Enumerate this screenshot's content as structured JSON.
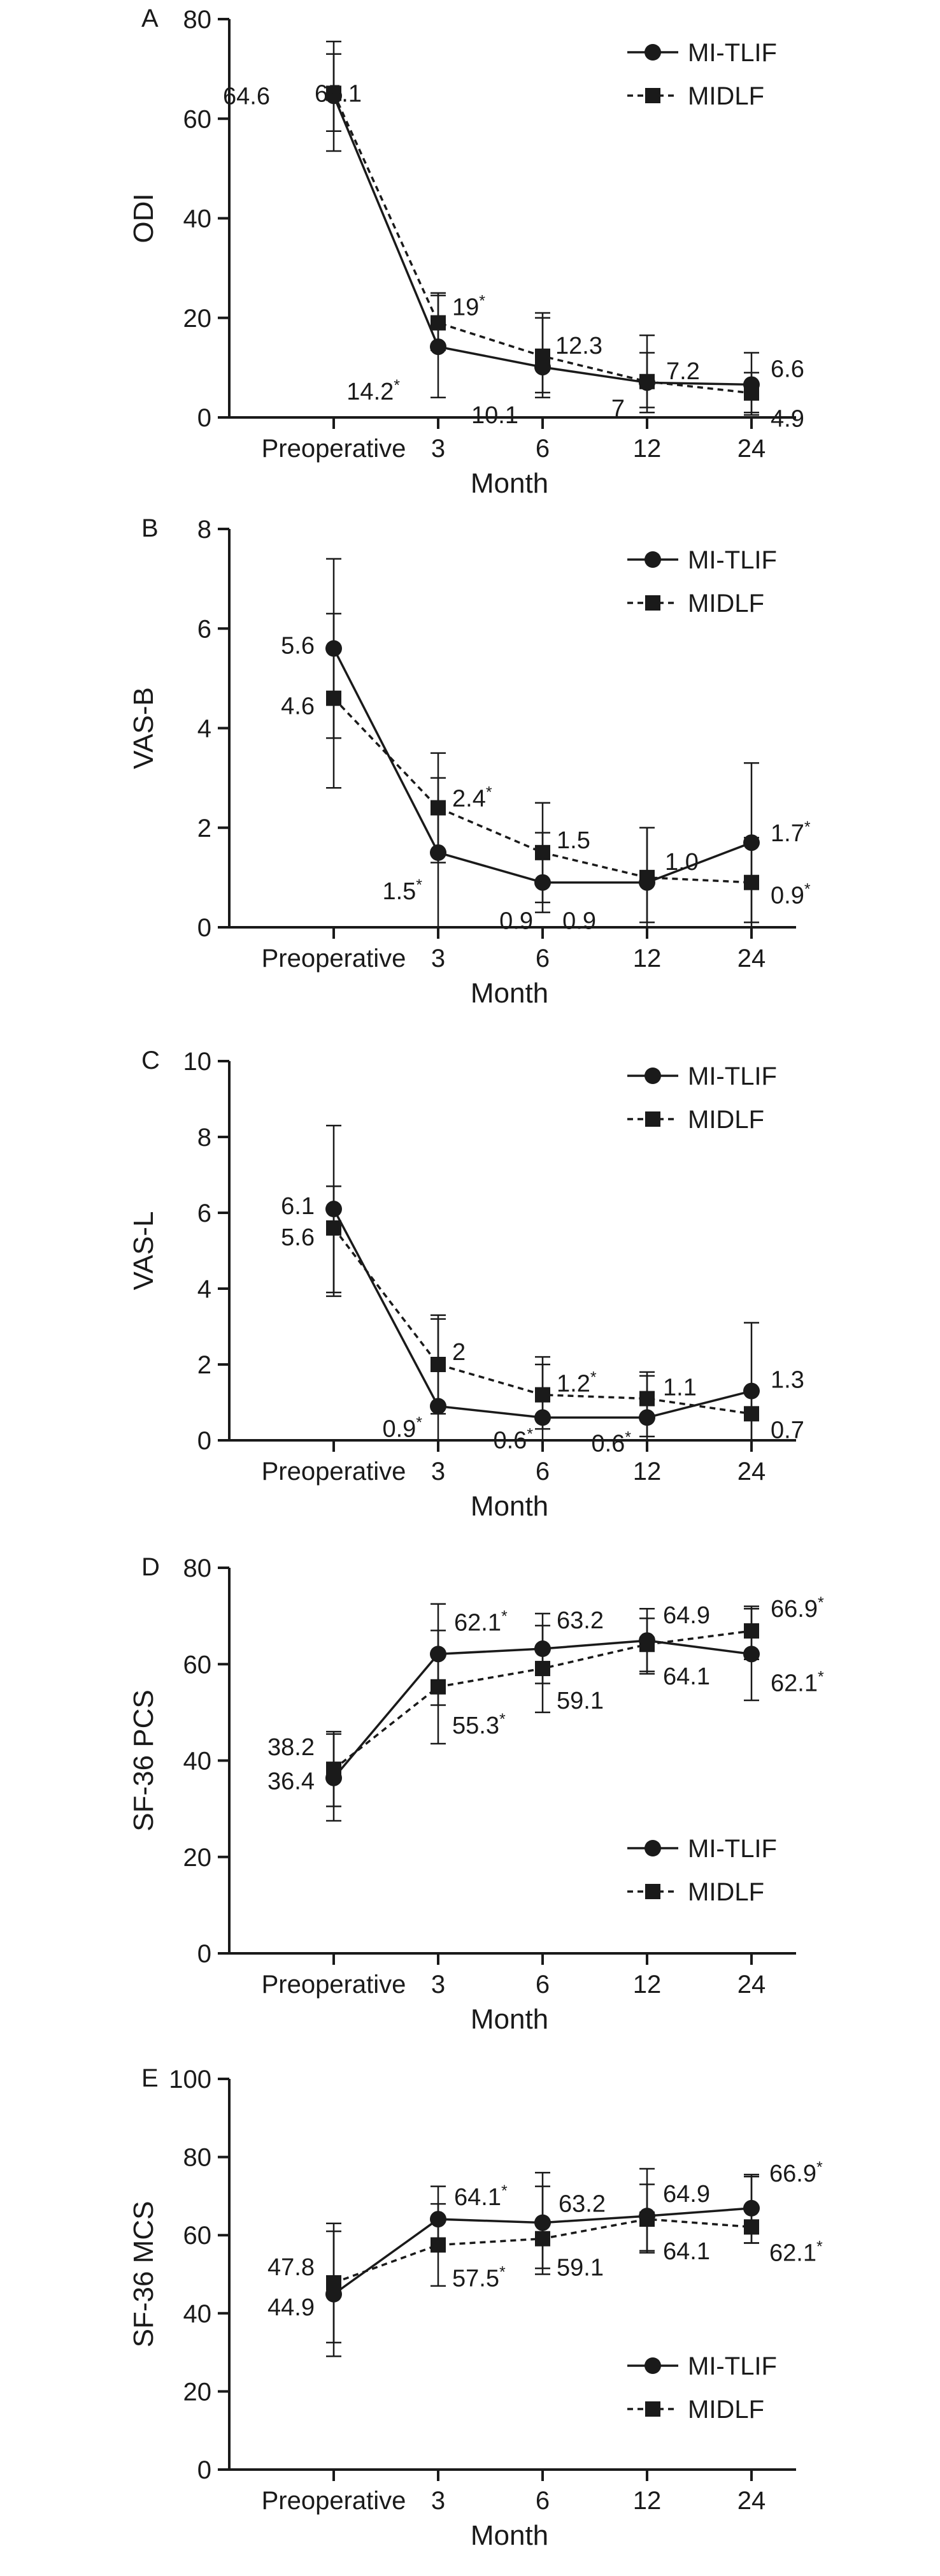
{
  "chart_data": [
    {
      "type": "line",
      "panel_letter": "A",
      "categories": [
        "Preoperative",
        "3",
        "6",
        "12",
        "24"
      ],
      "xlabel": "Month",
      "ylabel": "ODI",
      "ylim": [
        0,
        80
      ],
      "yticks": [
        0,
        20,
        40,
        60,
        80
      ],
      "legend_position": "top-right",
      "series": [
        {
          "name": "MI-TLIF",
          "marker": "circle",
          "line": "solid",
          "values": [
            64.6,
            14.2,
            10.1,
            7.0,
            6.6
          ],
          "error_low": [
            53.5,
            4.0,
            5.0,
            1.0,
            1.0
          ],
          "error_high": [
            75.5,
            24.5,
            20.0,
            16.5,
            13.0
          ],
          "labels": [
            "64.6",
            "14.2",
            "10.1",
            "7",
            "6.6"
          ],
          "significant": [
            false,
            true,
            false,
            false,
            false
          ]
        },
        {
          "name": "MIDLF",
          "marker": "square",
          "line": "dashed",
          "values": [
            65.1,
            19.0,
            12.3,
            7.2,
            4.9
          ],
          "error_low": [
            57.5,
            13.5,
            4.0,
            2.0,
            0.5
          ],
          "error_high": [
            73.0,
            25.0,
            21.0,
            13.0,
            9.0
          ],
          "labels": [
            "65.1",
            "19",
            "12.3",
            "7.2",
            "4.9"
          ],
          "significant": [
            false,
            true,
            false,
            false,
            false
          ]
        }
      ]
    },
    {
      "type": "line",
      "panel_letter": "B",
      "categories": [
        "Preoperative",
        "3",
        "6",
        "12",
        "24"
      ],
      "xlabel": "Month",
      "ylabel": "VAS-B",
      "ylim": [
        0,
        8
      ],
      "yticks": [
        0,
        2,
        4,
        6,
        8
      ],
      "legend_position": "top-right",
      "series": [
        {
          "name": "MI-TLIF",
          "marker": "circle",
          "line": "solid",
          "values": [
            5.6,
            1.5,
            0.9,
            0.9,
            1.7
          ],
          "error_low": [
            3.8,
            0.0,
            0.3,
            0.1,
            0.1
          ],
          "error_high": [
            7.4,
            3.0,
            1.9,
            2.0,
            3.3
          ],
          "labels": [
            "5.6",
            "1.5",
            "0.9",
            "0.9",
            "1.7"
          ],
          "significant": [
            false,
            true,
            false,
            false,
            true
          ]
        },
        {
          "name": "MIDLF",
          "marker": "square",
          "line": "dashed",
          "values": [
            4.6,
            2.4,
            1.5,
            1.0,
            0.9
          ],
          "error_low": [
            2.8,
            1.3,
            0.5,
            0.0,
            0.0
          ],
          "error_high": [
            6.3,
            3.5,
            2.5,
            2.0,
            1.8
          ],
          "labels": [
            "4.6",
            "2.4",
            "1.5",
            "1.0",
            "0.9"
          ],
          "significant": [
            false,
            true,
            false,
            false,
            true
          ]
        }
      ]
    },
    {
      "type": "line",
      "panel_letter": "C",
      "categories": [
        "Preoperative",
        "3",
        "6",
        "12",
        "24"
      ],
      "xlabel": "Month",
      "ylabel": "VAS-L",
      "ylim": [
        0,
        10
      ],
      "yticks": [
        0,
        2,
        4,
        6,
        8,
        10
      ],
      "legend_position": "top-right",
      "series": [
        {
          "name": "MI-TLIF",
          "marker": "circle",
          "line": "solid",
          "values": [
            6.1,
            0.9,
            0.6,
            0.6,
            1.3
          ],
          "error_low": [
            3.9,
            0.0,
            0.0,
            0.0,
            0.0
          ],
          "error_high": [
            8.3,
            3.2,
            2.0,
            1.7,
            3.1
          ],
          "labels": [
            "6.1",
            "0.9",
            "0.6",
            "0.6",
            "1.3"
          ],
          "significant": [
            false,
            true,
            true,
            true,
            false
          ]
        },
        {
          "name": "MIDLF",
          "marker": "square",
          "line": "dashed",
          "values": [
            5.6,
            2.0,
            1.2,
            1.1,
            0.7
          ],
          "error_low": [
            3.8,
            0.7,
            0.3,
            0.1,
            0.0
          ],
          "error_high": [
            6.7,
            3.3,
            2.2,
            1.8,
            1.3
          ],
          "labels": [
            "5.6",
            "2",
            "1.2",
            "1.1",
            "0.7"
          ],
          "significant": [
            false,
            false,
            true,
            false,
            false
          ]
        }
      ]
    },
    {
      "type": "line",
      "panel_letter": "D",
      "categories": [
        "Preoperative",
        "3",
        "6",
        "12",
        "24"
      ],
      "xlabel": "Month",
      "ylabel": "SF-36 PCS",
      "ylim": [
        0,
        80
      ],
      "yticks": [
        0,
        20,
        40,
        60,
        80
      ],
      "legend_position": "bottom-right",
      "series": [
        {
          "name": "MI-TLIF",
          "marker": "circle",
          "line": "solid",
          "values": [
            36.4,
            62.1,
            63.2,
            64.9,
            62.1
          ],
          "error_low": [
            27.5,
            51.5,
            56.0,
            58.0,
            52.5
          ],
          "error_high": [
            45.5,
            72.5,
            70.5,
            71.5,
            71.5
          ],
          "labels": [
            "36.4",
            "62.1",
            "63.2",
            "64.9",
            "62.1"
          ],
          "significant": [
            false,
            true,
            false,
            false,
            true
          ]
        },
        {
          "name": "MIDLF",
          "marker": "square",
          "line": "dashed",
          "values": [
            38.2,
            55.3,
            59.1,
            64.1,
            66.9
          ],
          "error_low": [
            30.5,
            43.5,
            50.0,
            58.5,
            61.0
          ],
          "error_high": [
            46.0,
            67.0,
            68.0,
            69.5,
            72.0
          ],
          "labels": [
            "38.2",
            "55.3",
            "59.1",
            "64.1",
            "66.9"
          ],
          "significant": [
            false,
            true,
            false,
            false,
            true
          ]
        }
      ]
    },
    {
      "type": "line",
      "panel_letter": "E",
      "categories": [
        "Preoperative",
        "3",
        "6",
        "12",
        "24"
      ],
      "xlabel": "Month",
      "ylabel": "SF-36 MCS",
      "ylim": [
        0,
        100
      ],
      "yticks": [
        0,
        20,
        40,
        60,
        80,
        100
      ],
      "legend_position": "bottom-right",
      "series": [
        {
          "name": "MI-TLIF",
          "marker": "circle",
          "line": "solid",
          "values": [
            44.9,
            64.1,
            63.2,
            64.9,
            66.9
          ],
          "error_low": [
            29.0,
            56.0,
            50.0,
            55.5,
            58.0
          ],
          "error_high": [
            61.0,
            72.5,
            76.0,
            77.0,
            75.0
          ],
          "labels": [
            "44.9",
            "64.1",
            "63.2",
            "64.9",
            "66.9"
          ],
          "significant": [
            false,
            true,
            false,
            false,
            true
          ]
        },
        {
          "name": "MIDLF",
          "marker": "square",
          "line": "dashed",
          "values": [
            47.8,
            57.5,
            59.1,
            64.1,
            62.1
          ],
          "error_low": [
            32.5,
            47.0,
            51.5,
            56.0,
            58.0
          ],
          "error_high": [
            63.0,
            68.0,
            72.5,
            73.0,
            75.5
          ],
          "labels": [
            "47.8",
            "57.5",
            "59.1",
            "64.1",
            "62.1"
          ],
          "significant": [
            false,
            true,
            false,
            false,
            true
          ]
        }
      ]
    }
  ]
}
